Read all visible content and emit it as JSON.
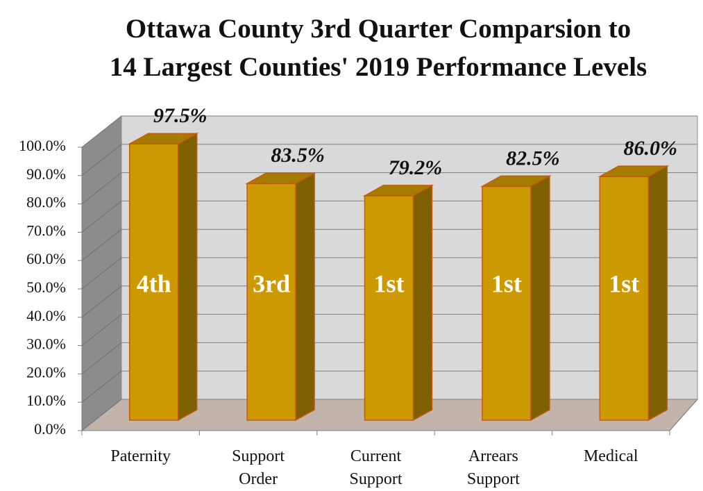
{
  "chart_data": {
    "type": "bar3d",
    "title": "Ottawa County 3rd Quarter Comparsion to\n14 Largest Counties' 2019 Performance Levels",
    "categories": [
      "Paternity",
      "Support Order",
      "Current Support",
      "Arrears Support",
      "Medical"
    ],
    "values": [
      97.5,
      83.5,
      79.2,
      82.5,
      86.0
    ],
    "value_labels": [
      "97.5%",
      "83.5%",
      "79.2%",
      "82.5%",
      "86.0%"
    ],
    "ranks": [
      "4th",
      "3rd",
      "1st",
      "1st",
      "1st"
    ],
    "color": "#cc9900",
    "ylim": [
      0,
      100
    ],
    "yticks": [
      {
        "value": 0,
        "label": "0.0%"
      },
      {
        "value": 10,
        "label": "10.0%"
      },
      {
        "value": 20,
        "label": "20.0%"
      },
      {
        "value": 30,
        "label": "30.0%"
      },
      {
        "value": 40,
        "label": "40.0%"
      },
      {
        "value": 50,
        "label": "50.0%"
      },
      {
        "value": 60,
        "label": "60.0%"
      },
      {
        "value": 70,
        "label": "70.0%"
      },
      {
        "value": 80,
        "label": "80.0%"
      },
      {
        "value": 90,
        "label": "90.0%"
      },
      {
        "value": 100,
        "label": "100.0%"
      }
    ],
    "grid": true
  }
}
